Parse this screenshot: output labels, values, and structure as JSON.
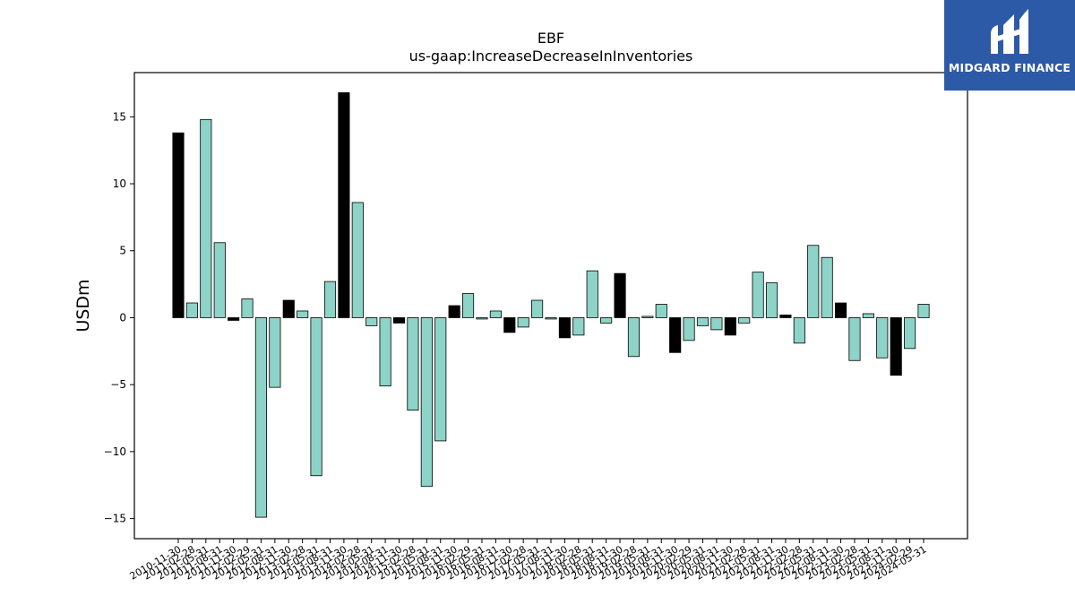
{
  "brand": {
    "name": "MIDGARD FINANCE",
    "bg_color": "#2d5aa7"
  },
  "colors": {
    "primary": "#8dd3c7",
    "highlight": "#000000",
    "edge": "#000000"
  },
  "chart_data": {
    "type": "bar",
    "title": "EBF",
    "subtitle": "us-gaap:IncreaseDecreaseInInventories",
    "xlabel": "",
    "ylabel": "USDm",
    "ylim": [
      -16.5,
      18.3
    ],
    "yticks": [
      -15,
      -10,
      -5,
      0,
      5,
      10,
      15
    ],
    "grid": false,
    "categories": [
      "2010-11-30",
      "2011-02-28",
      "2011-05-31",
      "2011-08-31",
      "2011-11-30",
      "2012-02-29",
      "2012-05-31",
      "2012-08-31",
      "2012-11-30",
      "2013-02-28",
      "2013-05-31",
      "2013-08-31",
      "2013-11-30",
      "2014-02-28",
      "2014-05-31",
      "2014-08-31",
      "2014-11-30",
      "2015-02-28",
      "2015-05-31",
      "2015-08-31",
      "2015-11-30",
      "2016-02-29",
      "2016-05-31",
      "2016-08-31",
      "2016-11-30",
      "2017-02-28",
      "2017-05-31",
      "2017-08-31",
      "2017-11-30",
      "2018-02-28",
      "2018-05-31",
      "2018-08-31",
      "2018-11-30",
      "2019-02-28",
      "2019-05-31",
      "2019-08-31",
      "2019-11-30",
      "2020-02-29",
      "2020-05-31",
      "2020-08-31",
      "2020-11-30",
      "2021-02-28",
      "2021-05-31",
      "2021-08-31",
      "2021-11-30",
      "2022-02-28",
      "2022-05-31",
      "2022-08-31",
      "2022-11-30",
      "2023-02-28",
      "2023-05-31",
      "2023-08-31",
      "2023-11-30",
      "2024-02-29",
      "2024-05-31"
    ],
    "values": [
      13.8,
      1.1,
      14.8,
      5.6,
      -0.2,
      1.4,
      -14.9,
      -5.2,
      1.3,
      0.5,
      -11.8,
      2.7,
      16.8,
      8.6,
      -0.6,
      -5.1,
      -0.4,
      -6.9,
      -12.6,
      -9.2,
      0.9,
      1.8,
      -0.1,
      0.5,
      -1.1,
      -0.7,
      1.3,
      -0.1,
      -1.5,
      -1.3,
      3.5,
      -0.4,
      3.3,
      -2.9,
      0.1,
      1.0,
      -2.6,
      -1.7,
      -0.6,
      -0.9,
      -1.3,
      -0.4,
      3.4,
      2.6,
      0.2,
      -1.9,
      5.4,
      4.5,
      1.1,
      -3.2,
      0.3,
      -3.0,
      -4.3,
      -2.3,
      1.0
    ],
    "highlight_indices": [
      0,
      4,
      8,
      12,
      16,
      20,
      24,
      28,
      32,
      36,
      40,
      44,
      48,
      52
    ]
  }
}
